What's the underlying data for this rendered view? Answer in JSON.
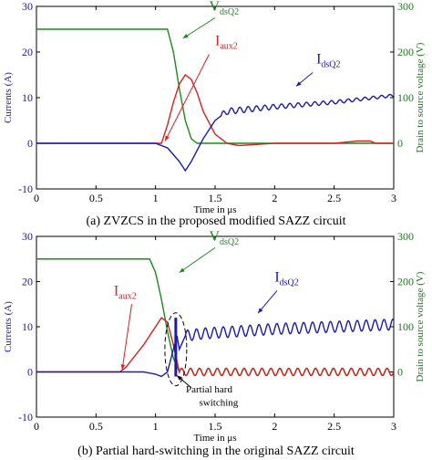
{
  "chart_data": [
    {
      "type": "line",
      "caption": "(a) ZVZCS in the proposed modified SAZZ circuit",
      "xlabel": "Time in μs",
      "ylabel": "Currents (A)",
      "ylabel_right": "Drain to source voltage (V)",
      "xlim": [
        0,
        3
      ],
      "ylim": [
        -10,
        30
      ],
      "ylim_right": [
        -100,
        300
      ],
      "x_ticks": [
        "0",
        "0.5",
        "1",
        "1.5",
        "2",
        "2.5",
        "3"
      ],
      "y_ticks": [
        "-10",
        "0",
        "10",
        "20",
        "30"
      ],
      "y_ticks_right": [
        "0",
        "100",
        "200",
        "300"
      ],
      "series": [
        {
          "name_main": "V",
          "name_sub": "dsQ2",
          "axis": "right",
          "color": "#1a8a1a",
          "x": [
            0,
            1.1,
            1.15,
            1.2,
            1.25,
            1.3,
            1.35,
            3.0
          ],
          "y": [
            250,
            250,
            200,
            120,
            50,
            10,
            0,
            0
          ]
        },
        {
          "name_main": "I",
          "name_sub": "aux2",
          "axis": "left",
          "color": "#d42020",
          "x": [
            0,
            1.0,
            1.05,
            1.1,
            1.15,
            1.2,
            1.25,
            1.3,
            1.35,
            1.4,
            1.5,
            1.6,
            1.7,
            2.0,
            2.5,
            2.7,
            2.8,
            2.85,
            3.0
          ],
          "y": [
            0,
            0,
            0,
            4,
            9,
            13,
            15,
            14,
            11,
            7,
            2,
            0,
            -0.5,
            0,
            0,
            0.5,
            0.5,
            0,
            0
          ]
        },
        {
          "name_main": "I",
          "name_sub": "dsQ2",
          "axis": "left",
          "color": "#1a1ab0",
          "x": [
            0,
            0.3,
            1.0,
            1.1,
            1.2,
            1.25,
            1.3,
            1.4,
            1.5,
            1.6,
            2.0,
            2.5,
            3.0
          ],
          "y": [
            0,
            0,
            0,
            -1,
            -4,
            -6,
            -4,
            1,
            5,
            7,
            8,
            9,
            10.5
          ],
          "ripple": {
            "from": 1.55,
            "amp": 0.7,
            "period": 0.07
          }
        }
      ],
      "annotations": [
        {
          "main": "V",
          "sub": "dsQ2",
          "x": 1.45,
          "y": 29,
          "color": "#1a8a1a"
        },
        {
          "main": "I",
          "sub": "aux2",
          "x": 1.5,
          "y": 21.5,
          "color": "#d42020"
        },
        {
          "main": "I",
          "sub": "dsQ2",
          "x": 2.35,
          "y": 17.5,
          "color": "#1a1ab0"
        }
      ],
      "grid": false
    },
    {
      "type": "line",
      "caption": "(b) Partial hard-switching in the original SAZZ circuit",
      "xlabel": "Time in μs",
      "ylabel": "Currents (A)",
      "ylabel_right": "Drain to source voltage (V)",
      "xlim": [
        0,
        3
      ],
      "ylim": [
        -10,
        30
      ],
      "ylim_right": [
        -100,
        300
      ],
      "x_ticks": [
        "0",
        "0.5",
        "1",
        "1.5",
        "2",
        "2.5",
        "3"
      ],
      "y_ticks": [
        "-10",
        "0",
        "10",
        "20",
        "30"
      ],
      "y_ticks_right": [
        "0",
        "100",
        "200",
        "300"
      ],
      "series": [
        {
          "name_main": "V",
          "name_sub": "dsQ2",
          "axis": "right",
          "color": "#1a8a1a",
          "x": [
            0,
            0.95,
            1.0,
            1.05,
            1.1,
            1.15,
            1.2,
            3.0
          ],
          "y": [
            250,
            250,
            220,
            160,
            90,
            30,
            0,
            0
          ],
          "ripple": {
            "from": 1.2,
            "amp": 8,
            "period": 0.075
          }
        },
        {
          "name_main": "I",
          "name_sub": "aux2",
          "axis": "left",
          "color": "#d42020",
          "x": [
            0,
            0.7,
            0.75,
            0.9,
            1.0,
            1.05,
            1.1,
            1.15,
            1.2,
            3.0
          ],
          "y": [
            0,
            0,
            1,
            6,
            10,
            12,
            11,
            6,
            0,
            0
          ],
          "ripple": {
            "from": 1.2,
            "amp": 0.8,
            "period": 0.075
          }
        },
        {
          "name_main": "I",
          "name_sub": "dsQ2",
          "axis": "left",
          "color": "#1a1ab0",
          "x": [
            0,
            0.9,
            1.0,
            1.05,
            1.1,
            1.15,
            1.18,
            1.2,
            1.25,
            1.4,
            2.0,
            3.0
          ],
          "y": [
            0,
            0,
            -0.5,
            -1,
            0,
            5,
            8,
            5,
            8,
            8.5,
            9.5,
            10.5
          ],
          "ripple": {
            "from": 1.25,
            "amp": 1.2,
            "period": 0.075
          }
        }
      ],
      "annotations": [
        {
          "main": "V",
          "sub": "dsQ2",
          "x": 1.45,
          "y": 29,
          "color": "#1a8a1a"
        },
        {
          "main": "I",
          "sub": "aux2",
          "x": 0.65,
          "y": 17,
          "color": "#d42020"
        },
        {
          "main": "I",
          "sub": "dsQ2",
          "x": 2.0,
          "y": 20,
          "color": "#1a1ab0"
        },
        {
          "main": "Partial hard",
          "sub": "",
          "x": 1.45,
          "y": -4.5,
          "color": "#000000"
        },
        {
          "main": "switching",
          "sub": "",
          "x": 1.53,
          "y": -7.5,
          "color": "#000000"
        }
      ],
      "grid": false
    }
  ]
}
